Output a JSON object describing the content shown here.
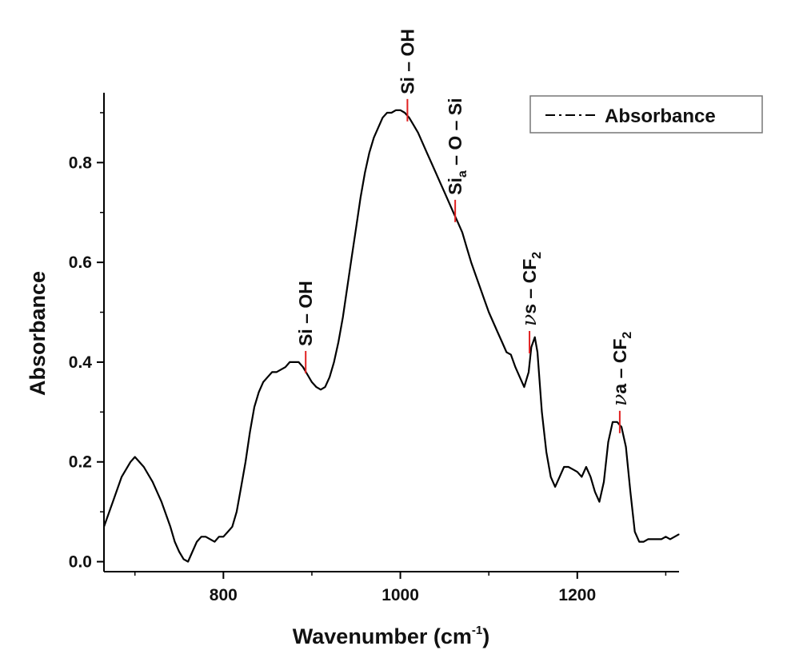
{
  "chart_data": {
    "type": "line",
    "xlabel": "Wavenumber (cm",
    "xlabel_sup": "-1",
    "xlabel_end": ")",
    "ylabel": "Absorbance",
    "xlim": [
      665,
      1315
    ],
    "ylim": [
      -0.02,
      0.94
    ],
    "xticks": [
      800,
      1000,
      1200
    ],
    "xtick_labels": [
      "800",
      "1000",
      "1200"
    ],
    "yticks": [
      0.0,
      0.2,
      0.4,
      0.6,
      0.8
    ],
    "ytick_labels": [
      "0.0",
      "0.2",
      "0.4",
      "0.6",
      "0.8"
    ],
    "legend": {
      "position": "top-right",
      "label": "Absorbance"
    },
    "series": [
      {
        "name": "Absorbance",
        "x": [
          665,
          675,
          685,
          695,
          700,
          710,
          720,
          730,
          740,
          745,
          750,
          755,
          760,
          765,
          770,
          775,
          780,
          785,
          790,
          795,
          800,
          805,
          810,
          815,
          820,
          825,
          830,
          835,
          840,
          845,
          850,
          855,
          860,
          865,
          870,
          875,
          880,
          885,
          890,
          895,
          900,
          905,
          910,
          915,
          920,
          925,
          930,
          935,
          940,
          945,
          950,
          955,
          960,
          965,
          970,
          975,
          980,
          985,
          990,
          995,
          1000,
          1005,
          1010,
          1015,
          1020,
          1025,
          1030,
          1035,
          1040,
          1045,
          1050,
          1055,
          1060,
          1065,
          1070,
          1075,
          1080,
          1085,
          1090,
          1095,
          1100,
          1105,
          1110,
          1115,
          1120,
          1125,
          1130,
          1135,
          1140,
          1145,
          1148,
          1152,
          1155,
          1160,
          1165,
          1170,
          1175,
          1180,
          1185,
          1190,
          1195,
          1200,
          1205,
          1210,
          1215,
          1220,
          1225,
          1230,
          1235,
          1240,
          1245,
          1250,
          1255,
          1260,
          1265,
          1270,
          1275,
          1280,
          1285,
          1290,
          1295,
          1300,
          1305,
          1310,
          1315
        ],
        "y": [
          0.07,
          0.12,
          0.17,
          0.2,
          0.21,
          0.19,
          0.16,
          0.12,
          0.07,
          0.04,
          0.02,
          0.005,
          0.0,
          0.02,
          0.04,
          0.05,
          0.05,
          0.045,
          0.04,
          0.05,
          0.05,
          0.06,
          0.07,
          0.1,
          0.15,
          0.2,
          0.26,
          0.31,
          0.34,
          0.36,
          0.37,
          0.38,
          0.38,
          0.385,
          0.39,
          0.4,
          0.4,
          0.4,
          0.39,
          0.375,
          0.36,
          0.35,
          0.345,
          0.35,
          0.37,
          0.4,
          0.44,
          0.49,
          0.55,
          0.61,
          0.67,
          0.73,
          0.78,
          0.82,
          0.85,
          0.87,
          0.89,
          0.9,
          0.9,
          0.905,
          0.905,
          0.9,
          0.89,
          0.875,
          0.86,
          0.84,
          0.82,
          0.8,
          0.78,
          0.76,
          0.74,
          0.72,
          0.7,
          0.68,
          0.66,
          0.63,
          0.6,
          0.575,
          0.55,
          0.525,
          0.5,
          0.48,
          0.46,
          0.44,
          0.42,
          0.415,
          0.39,
          0.37,
          0.35,
          0.38,
          0.43,
          0.45,
          0.42,
          0.3,
          0.22,
          0.17,
          0.15,
          0.17,
          0.19,
          0.19,
          0.185,
          0.18,
          0.17,
          0.19,
          0.17,
          0.14,
          0.12,
          0.16,
          0.24,
          0.28,
          0.28,
          0.27,
          0.23,
          0.14,
          0.06,
          0.04,
          0.04,
          0.045,
          0.045,
          0.045,
          0.045,
          0.05,
          0.045,
          0.05,
          0.055
        ]
      }
    ],
    "annotations": [
      {
        "main": "Si – OH",
        "sub": "",
        "tail": "",
        "nu": "",
        "x": 893,
        "y": 0.4
      },
      {
        "main": "Si – OH",
        "sub": "",
        "tail": "",
        "nu": "",
        "x": 1008,
        "y": 0.905
      },
      {
        "main": "Si",
        "sub": "a",
        "tail": " – O – Si",
        "nu": "",
        "x": 1062,
        "y": 0.703
      },
      {
        "main": "s – CF",
        "sub": "2",
        "tail": "",
        "nu": "ν",
        "x": 1146,
        "y": 0.44
      },
      {
        "main": "a – CF",
        "sub": "2",
        "tail": "",
        "nu": "ν",
        "x": 1248,
        "y": 0.28
      }
    ],
    "colors": {
      "line": "#000000",
      "marker": "#e02020",
      "axis": "#000000"
    }
  }
}
